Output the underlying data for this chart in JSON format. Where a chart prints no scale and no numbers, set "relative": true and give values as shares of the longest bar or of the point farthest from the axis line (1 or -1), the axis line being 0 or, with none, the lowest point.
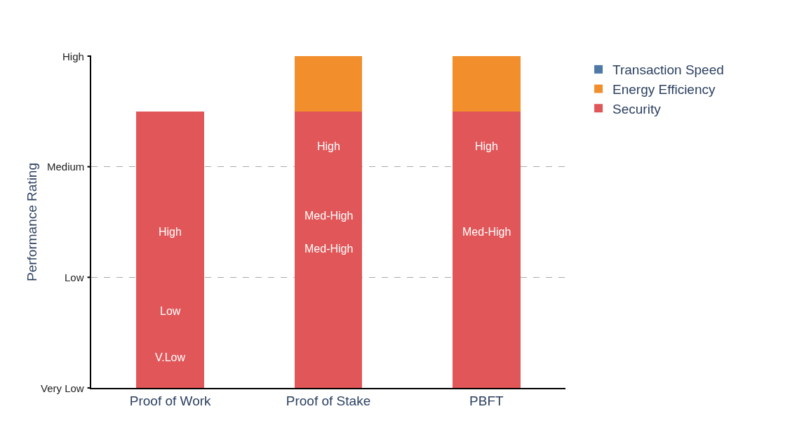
{
  "chart_data": {
    "type": "bar",
    "stacked": true,
    "relative": true,
    "categories": [
      "Proof of Work",
      "Proof of Stake",
      "PBFT"
    ],
    "series": [
      {
        "name": "Security",
        "color": "#e15759",
        "values": [
          0.833,
          0.833,
          0.833
        ]
      },
      {
        "name": "Energy Efficiency",
        "color": "#f28e2b",
        "values": [
          null,
          0.167,
          0.167
        ]
      },
      {
        "name": "Transaction Speed",
        "color": "#4e79a7",
        "values": [
          null,
          null,
          null
        ]
      }
    ],
    "ylabel": "Performance Rating",
    "ref_lines": [
      {
        "axis": "y",
        "value": 0.333,
        "color": "#aaaaaa",
        "line_style": "dashed"
      },
      {
        "axis": "y",
        "value": 0.667,
        "color": "#aaaaaa",
        "line_style": "dashed"
      }
    ],
    "annotations": [
      "Very Low",
      "Low",
      "Medium",
      "High",
      "V.Low",
      "Low",
      "High",
      "High",
      "Med-High",
      "Med-High",
      "High",
      "Med-High"
    ],
    "legend": "top right"
  }
}
